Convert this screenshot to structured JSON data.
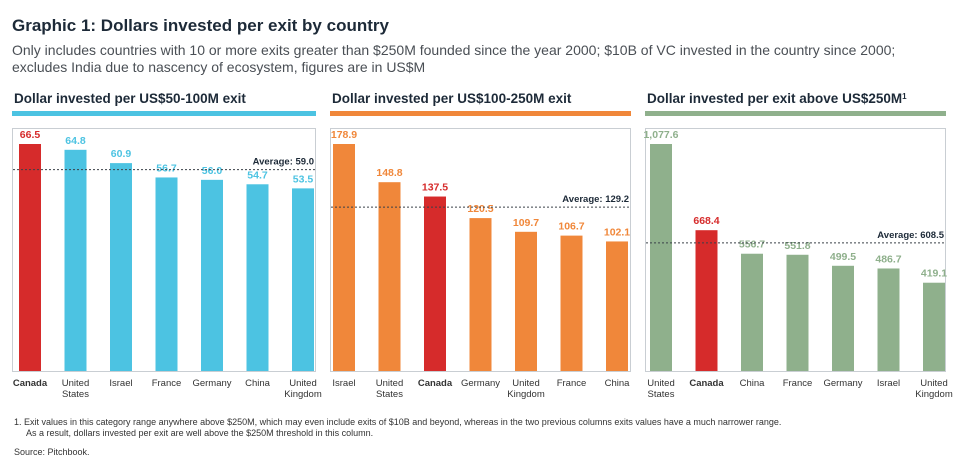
{
  "title": "Graphic 1: Dollars invested per exit by country",
  "subtitle": "Only includes countries with 10 or more exits greater than $250M founded since the year 2000; $10B of VC invested in the country since 2000; excludes India due to nascency of ecosystem, figures are in US$M",
  "footnote_line1": "1.  Exit values in this category range anywhere above $250M, which may even include exits of $10B and beyond, whereas in the two previous columns exits values have a much narrower range.",
  "footnote_line2": "As a result, dollars invested per exit are well above the $250M threshold in this column.",
  "source": "Source: Pitchbook.",
  "colors": {
    "canada": "#d62b2b",
    "panel1": "#4cc3e2",
    "panel2": "#f0873a",
    "panel3": "#8fb08c",
    "text": "#1d2a38"
  },
  "chart_data": [
    {
      "type": "bar",
      "title": "Dollar invested per US$50-100M exit",
      "categories": [
        "Canada",
        "United States",
        "Israel",
        "France",
        "Germany",
        "China",
        "United Kingdom"
      ],
      "values": [
        66.5,
        64.8,
        60.9,
        56.7,
        56.0,
        54.7,
        53.5
      ],
      "value_labels": [
        "66.5",
        "64.8",
        "60.9",
        "56.7",
        "56.0",
        "54.7",
        "53.5"
      ],
      "average": 59.0,
      "average_label": "Average: 59.0",
      "ylim": [
        0,
        66.5
      ]
    },
    {
      "type": "bar",
      "title": "Dollar invested per US$100-250M exit",
      "categories": [
        "Israel",
        "United States",
        "Canada",
        "Germany",
        "United Kingdom",
        "France",
        "China"
      ],
      "values": [
        178.9,
        148.8,
        137.5,
        120.5,
        109.7,
        106.7,
        102.1
      ],
      "value_labels": [
        "178.9",
        "148.8",
        "137.5",
        "120.5",
        "109.7",
        "106.7",
        "102.1"
      ],
      "average": 129.2,
      "average_label": "Average: 129.2",
      "ylim": [
        0,
        178.9
      ]
    },
    {
      "type": "bar",
      "title": "Dollar invested per exit above US$250M",
      "title_sup": "1",
      "categories": [
        "United States",
        "Canada",
        "China",
        "France",
        "Germany",
        "Israel",
        "United Kingdom"
      ],
      "values": [
        1077.6,
        668.4,
        556.7,
        551.8,
        499.5,
        486.7,
        419.1
      ],
      "value_labels": [
        "1,077.6",
        "668.4",
        "556.7",
        "551.8",
        "499.5",
        "486.7",
        "419.1"
      ],
      "average": 608.5,
      "average_label": "Average: 608.5",
      "ylim": [
        0,
        1077.6
      ]
    }
  ]
}
